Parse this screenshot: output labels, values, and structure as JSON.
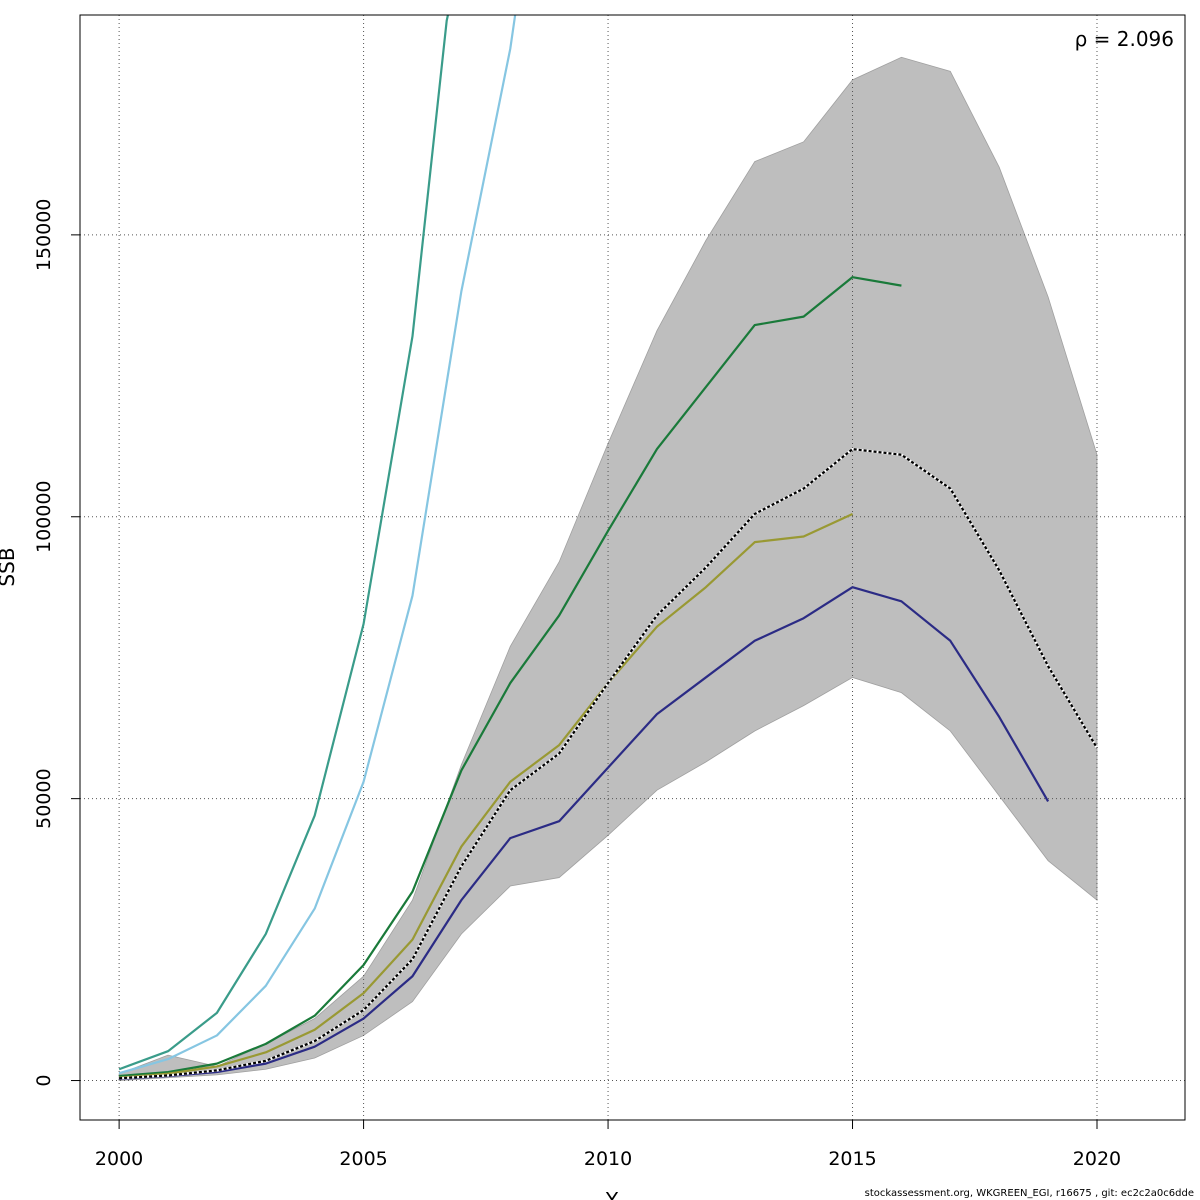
{
  "chart_data": {
    "type": "line",
    "xlim": [
      1999.2,
      2021.8
    ],
    "ylim": [
      -7000,
      189000
    ],
    "x_ticks": [
      2000,
      2005,
      2010,
      2015,
      2020
    ],
    "y_ticks": [
      0,
      50000,
      100000,
      150000
    ],
    "grid": true,
    "xlabel": "Y",
    "ylabel": "SSB",
    "annotation": "ρ = 2.096",
    "band": {
      "color": "#bebebe",
      "x": [
        2000,
        2001,
        2002,
        2003,
        2004,
        2005,
        2006,
        2007,
        2008,
        2009,
        2010,
        2011,
        2012,
        2013,
        2014,
        2015,
        2016,
        2017,
        2018,
        2019,
        2020
      ],
      "upper": [
        1200,
        4500,
        2500,
        6500,
        11000,
        18500,
        32000,
        56000,
        77000,
        92000,
        113000,
        133000,
        149000,
        163000,
        166500,
        177500,
        181500,
        179000,
        162000,
        139000,
        111000
      ],
      "lower": [
        0,
        500,
        1000,
        2000,
        4000,
        8000,
        14000,
        26000,
        34500,
        36000,
        43500,
        51500,
        56500,
        62000,
        66500,
        71500,
        68800,
        62000,
        50500,
        39000,
        32000
      ]
    },
    "series": [
      {
        "color": "#3a9c8a",
        "dashed": false,
        "x": [
          2000,
          2001,
          2002,
          2003,
          2004,
          2005,
          2006,
          2006.7,
          2007
        ],
        "y": [
          2000,
          5200,
          12000,
          26000,
          47000,
          81000,
          132000,
          188000,
          200000
        ]
      },
      {
        "color": "#86c6e2",
        "dashed": false,
        "x": [
          2000,
          2001,
          2002,
          2003,
          2004,
          2005,
          2006,
          2007,
          2008,
          2008.1
        ],
        "y": [
          1300,
          3800,
          8000,
          16800,
          30500,
          53000,
          86000,
          140000,
          183000,
          189000
        ]
      },
      {
        "color": "#1a7a3a",
        "dashed": false,
        "x": [
          2000,
          2001,
          2002,
          2003,
          2004,
          2005,
          2006,
          2007,
          2008,
          2009,
          2010,
          2011,
          2012,
          2013,
          2014,
          2015,
          2016
        ],
        "y": [
          800,
          1500,
          3000,
          6500,
          11500,
          20500,
          33500,
          55000,
          70500,
          82500,
          97500,
          112000,
          123000,
          134000,
          135500,
          142500,
          141000
        ]
      },
      {
        "color": "#999933",
        "dashed": false,
        "x": [
          2000,
          2001,
          2002,
          2003,
          2004,
          2005,
          2006,
          2007,
          2008,
          2009,
          2010,
          2011,
          2012,
          2013,
          2014,
          2015
        ],
        "y": [
          500,
          1200,
          2500,
          5000,
          9000,
          15500,
          25000,
          41500,
          53000,
          59500,
          70500,
          80500,
          87500,
          95500,
          96500,
          100500
        ]
      },
      {
        "color": "#2b2b85",
        "dashed": false,
        "x": [
          2000,
          2001,
          2002,
          2003,
          2004,
          2005,
          2006,
          2007,
          2008,
          2009,
          2010,
          2011,
          2012,
          2013,
          2014,
          2015,
          2016,
          2017,
          2018,
          2019
        ],
        "y": [
          300,
          800,
          1500,
          3000,
          6000,
          11000,
          18500,
          32000,
          43000,
          46000,
          55500,
          65000,
          71500,
          78000,
          82000,
          87500,
          85000,
          78000,
          64500,
          49500
        ]
      },
      {
        "color": "#000000",
        "dashed": true,
        "x": [
          2000,
          2001,
          2002,
          2003,
          2004,
          2005,
          2006,
          2007,
          2008,
          2009,
          2010,
          2011,
          2012,
          2013,
          2014,
          2015,
          2016,
          2017,
          2018,
          2019,
          2020
        ],
        "y": [
          400,
          900,
          1800,
          3500,
          7000,
          12500,
          21500,
          38000,
          51500,
          58000,
          70500,
          82500,
          91000,
          100500,
          105000,
          112000,
          111000,
          105000,
          90500,
          73500,
          59000
        ]
      }
    ]
  },
  "footer": {
    "text": "stockassessment.org, WKGREEN_EGI, r16675 , git: ec2c2a0c6dde"
  }
}
